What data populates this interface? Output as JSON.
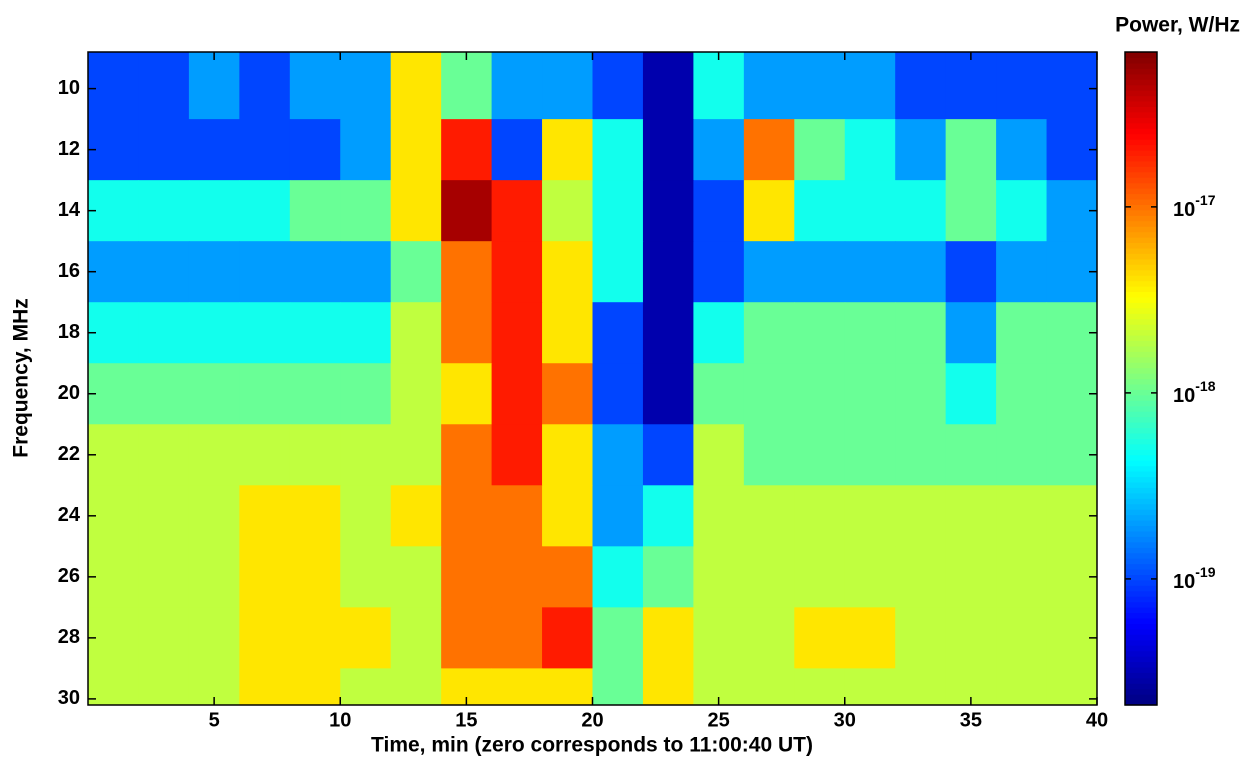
{
  "chart_data": {
    "type": "heatmap",
    "colorbar_title": "Power, W/Hz",
    "xlabel": "Time, min (zero corresponds to 11:00:40 UT)",
    "ylabel": "Frequency, MHz",
    "colormap": "jet",
    "color_log": true,
    "clim": [
      2.1e-20,
      6.8e-17
    ],
    "cticks": [
      {
        "value": 1e-17,
        "label": "10",
        "exponent": "-17"
      },
      {
        "value": 1e-18,
        "label": "10",
        "exponent": "-18"
      },
      {
        "value": 1e-19,
        "label": "10",
        "exponent": "-19"
      }
    ],
    "xlim": [
      0,
      40
    ],
    "xticks": [
      5,
      10,
      15,
      20,
      25,
      30,
      35,
      40
    ],
    "ylim": [
      30.2,
      8.8
    ],
    "yticks": [
      10,
      12,
      14,
      16,
      18,
      20,
      22,
      24,
      26,
      28,
      30
    ],
    "x_bins": [
      0,
      2,
      4,
      6,
      8,
      10,
      12,
      14,
      16,
      18,
      20,
      22,
      24,
      26,
      28,
      30,
      32,
      34,
      36,
      38,
      40
    ],
    "y_bins": [
      8.8,
      11,
      13,
      15,
      17,
      19,
      21,
      23,
      25,
      27,
      29,
      30.2
    ],
    "values": [
      [
        1e-19,
        1e-19,
        2e-19,
        1e-19,
        2e-19,
        2e-19,
        4e-18,
        1e-18,
        2e-19,
        2e-19,
        1e-19,
        3e-20,
        5e-19,
        2e-19,
        2e-19,
        2e-19,
        1e-19,
        1e-19,
        1e-19,
        1e-19
      ],
      [
        1e-19,
        1e-19,
        1e-19,
        1e-19,
        1e-19,
        2e-19,
        4e-18,
        2e-17,
        1e-19,
        4e-18,
        5e-19,
        3e-20,
        2e-19,
        1e-17,
        1e-18,
        5e-19,
        2e-19,
        1e-18,
        2e-19,
        1e-19
      ],
      [
        5e-19,
        5e-19,
        5e-19,
        5e-19,
        1e-18,
        1e-18,
        4e-18,
        5e-17,
        2e-17,
        2e-18,
        5e-19,
        3e-20,
        1e-19,
        4e-18,
        5e-19,
        5e-19,
        5e-19,
        1e-18,
        5e-19,
        2e-19
      ],
      [
        2e-19,
        2e-19,
        2e-19,
        2e-19,
        2e-19,
        2e-19,
        1e-18,
        1e-17,
        2e-17,
        4e-18,
        5e-19,
        3e-20,
        1e-19,
        2e-19,
        2e-19,
        2e-19,
        2e-19,
        1e-19,
        2e-19,
        2e-19
      ],
      [
        5e-19,
        5e-19,
        5e-19,
        5e-19,
        5e-19,
        5e-19,
        2e-18,
        1e-17,
        2e-17,
        4e-18,
        1e-19,
        3e-20,
        5e-19,
        1e-18,
        1e-18,
        1e-18,
        1e-18,
        2e-19,
        1e-18,
        1e-18
      ],
      [
        1e-18,
        1e-18,
        1e-18,
        1e-18,
        1e-18,
        1e-18,
        2e-18,
        4e-18,
        2e-17,
        1e-17,
        1e-19,
        3e-20,
        1e-18,
        1e-18,
        1e-18,
        1e-18,
        1e-18,
        5e-19,
        1e-18,
        1e-18
      ],
      [
        2e-18,
        2e-18,
        2e-18,
        2e-18,
        2e-18,
        2e-18,
        2e-18,
        1e-17,
        2e-17,
        4e-18,
        2e-19,
        1e-19,
        2e-18,
        1e-18,
        1e-18,
        1e-18,
        1e-18,
        1e-18,
        1e-18,
        1e-18
      ],
      [
        2e-18,
        2e-18,
        2e-18,
        4e-18,
        4e-18,
        2e-18,
        4e-18,
        1e-17,
        1e-17,
        4e-18,
        2e-19,
        5e-19,
        2e-18,
        2e-18,
        2e-18,
        2e-18,
        2e-18,
        2e-18,
        2e-18,
        2e-18
      ],
      [
        2e-18,
        2e-18,
        2e-18,
        4e-18,
        4e-18,
        2e-18,
        2e-18,
        1e-17,
        1e-17,
        1e-17,
        5e-19,
        1e-18,
        2e-18,
        2e-18,
        2e-18,
        2e-18,
        2e-18,
        2e-18,
        2e-18,
        2e-18
      ],
      [
        2e-18,
        2e-18,
        2e-18,
        4e-18,
        4e-18,
        4e-18,
        2e-18,
        1e-17,
        1e-17,
        2e-17,
        1e-18,
        4e-18,
        2e-18,
        2e-18,
        4e-18,
        4e-18,
        2e-18,
        2e-18,
        2e-18,
        2e-18
      ],
      [
        2e-18,
        2e-18,
        2e-18,
        4e-18,
        4e-18,
        2e-18,
        2e-18,
        4e-18,
        4e-18,
        4e-18,
        1e-18,
        4e-18,
        2e-18,
        2e-18,
        2e-18,
        2e-18,
        2e-18,
        2e-18,
        2e-18,
        2e-18
      ]
    ]
  }
}
